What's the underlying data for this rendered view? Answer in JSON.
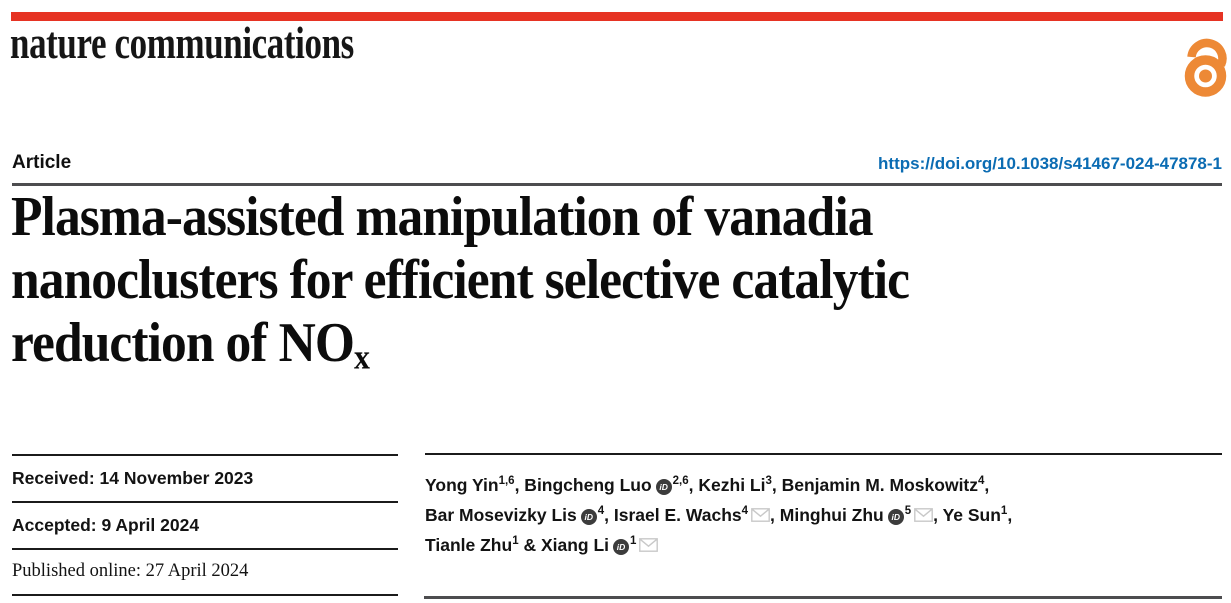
{
  "journal": {
    "name": "nature communications"
  },
  "masthead": {
    "open_access_icon": "open-access-lock-icon"
  },
  "article_header": {
    "label": "Article",
    "doi": "https://doi.org/10.1038/s41467-024-47878-1"
  },
  "title": {
    "lines": [
      "Plasma-assisted manipulation of vanadia",
      "nanoclusters for efficient selective catalytic"
    ],
    "line3_text": "reduction of NO",
    "line3_subscript": "x"
  },
  "dates": {
    "received": "Received: 14 November 2023",
    "accepted": "Accepted: 9 April 2024",
    "published_online": "Published online: 27 April 2024"
  },
  "authors": {
    "orcid_icon_label": "iD",
    "icons": {
      "orcid": "orcid-id-icon",
      "email": "envelope-icon"
    },
    "lines": [
      [
        {
          "t": "Yong Yin"
        },
        {
          "sup": "1,6"
        },
        {
          "t": ", Bingcheng Luo"
        },
        {
          "icon": "orcid"
        },
        {
          "sup": "2,6"
        },
        {
          "t": ", Kezhi Li"
        },
        {
          "sup": "3"
        },
        {
          "t": ", Benjamin M. Moskowitz"
        },
        {
          "sup": "4"
        },
        {
          "t": ","
        }
      ],
      [
        {
          "t": "Bar Mosevizky Lis"
        },
        {
          "icon": "orcid"
        },
        {
          "sup": "4"
        },
        {
          "t": ", Israel E. Wachs"
        },
        {
          "sup": "4"
        },
        {
          "icon": "envelope"
        },
        {
          "t": ", Minghui Zhu"
        },
        {
          "icon": "orcid"
        },
        {
          "sup": "5"
        },
        {
          "icon": "envelope"
        },
        {
          "t": ", Ye Sun"
        },
        {
          "sup": "1"
        },
        {
          "t": ","
        }
      ],
      [
        {
          "t": "Tianle Zhu"
        },
        {
          "sup": "1"
        },
        {
          "t": " & Xiang Li"
        },
        {
          "icon": "orcid"
        },
        {
          "sup": "1"
        },
        {
          "icon": "envelope"
        }
      ]
    ]
  },
  "colors": {
    "brand_red": "#e63323",
    "doi_blue": "#0b6cb3",
    "open_access_orange": "#ed8936",
    "rule_dark_gray": "#4d4d4f",
    "rule_black": "#1b1b1b",
    "text_black": "#121212"
  }
}
